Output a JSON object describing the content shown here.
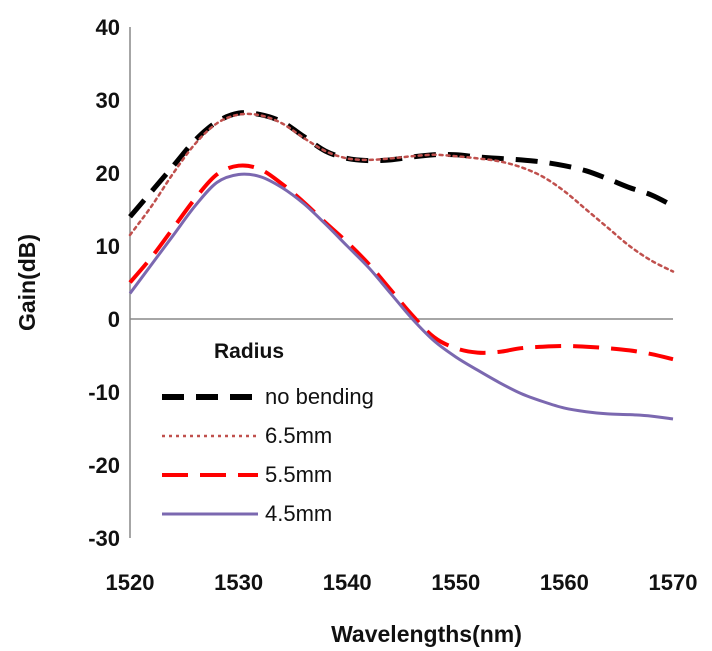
{
  "chart_data": {
    "type": "line",
    "xlabel": "Wavelengths(nm)",
    "ylabel": "Gain(dB)",
    "xlim": [
      1520,
      1570
    ],
    "ylim": [
      -30,
      40
    ],
    "xticks": [
      1520,
      1530,
      1540,
      1550,
      1560,
      1570
    ],
    "yticks": [
      40,
      30,
      20,
      10,
      0,
      -10,
      -20,
      -30
    ],
    "grid": false,
    "legend": {
      "title": "Radius",
      "placement": "lower-left"
    },
    "series": [
      {
        "name": "no bending",
        "color": "#000000",
        "style": "dashed",
        "x": [
          1520,
          1522,
          1524,
          1526,
          1528,
          1530,
          1532,
          1534,
          1536,
          1538,
          1540,
          1542,
          1544,
          1546,
          1548,
          1550,
          1552,
          1554,
          1556,
          1558,
          1560,
          1562,
          1564,
          1566,
          1568,
          1570
        ],
        "y": [
          14,
          17.5,
          21,
          24.5,
          27,
          28.2,
          28,
          27,
          25,
          23,
          22,
          21.7,
          21.8,
          22.2,
          22.5,
          22.5,
          22.2,
          22,
          21.8,
          21.5,
          21,
          20.3,
          19.2,
          18,
          17,
          15.5
        ]
      },
      {
        "name": "6.5mm",
        "color": "#c0504d",
        "style": "dotted",
        "x": [
          1520,
          1522,
          1524,
          1526,
          1528,
          1530,
          1532,
          1534,
          1536,
          1538,
          1540,
          1542,
          1544,
          1546,
          1548,
          1550,
          1552,
          1554,
          1556,
          1558,
          1560,
          1562,
          1564,
          1566,
          1568,
          1570
        ],
        "y": [
          11.5,
          15.5,
          20,
          24,
          26.8,
          28,
          27.9,
          26.8,
          24.8,
          23,
          22,
          21.8,
          22,
          22.3,
          22.5,
          22.3,
          22,
          21.6,
          20.8,
          19.5,
          17.5,
          15,
          12.5,
          10,
          8,
          6.5
        ]
      },
      {
        "name": "5.5mm",
        "color": "#ff0000",
        "style": "long-dashed",
        "x": [
          1520,
          1522,
          1524,
          1526,
          1528,
          1530,
          1532,
          1534,
          1536,
          1538,
          1540,
          1542,
          1544,
          1546,
          1548,
          1550,
          1552,
          1554,
          1556,
          1558,
          1560,
          1562,
          1564,
          1566,
          1568,
          1570
        ],
        "y": [
          5,
          8.5,
          12.5,
          16.5,
          19.8,
          21,
          20.5,
          18.5,
          16,
          13.2,
          10.5,
          7.5,
          4,
          0.5,
          -2.5,
          -4,
          -4.6,
          -4.5,
          -4,
          -3.8,
          -3.7,
          -3.8,
          -4,
          -4.3,
          -4.8,
          -5.5
        ]
      },
      {
        "name": "4.5mm",
        "color": "#7b68b0",
        "style": "solid",
        "x": [
          1520,
          1522,
          1524,
          1526,
          1528,
          1530,
          1532,
          1534,
          1536,
          1538,
          1540,
          1542,
          1544,
          1546,
          1548,
          1550,
          1552,
          1554,
          1556,
          1558,
          1560,
          1562,
          1564,
          1566,
          1568,
          1570
        ],
        "y": [
          3.5,
          7.5,
          11.5,
          15.5,
          18.7,
          19.8,
          19.5,
          18,
          15.8,
          13,
          10,
          7,
          3.5,
          0,
          -3,
          -5.2,
          -7,
          -8.7,
          -10.2,
          -11.3,
          -12.2,
          -12.7,
          -13,
          -13.1,
          -13.3,
          -13.7
        ]
      }
    ]
  }
}
